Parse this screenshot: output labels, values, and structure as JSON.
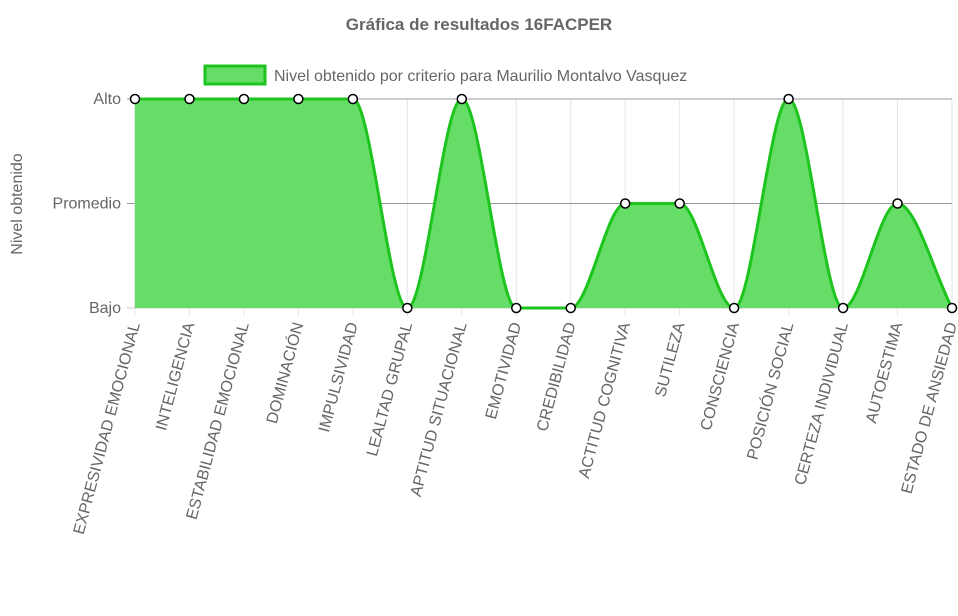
{
  "chart_data": {
    "type": "area",
    "title": "Gráfica de resultados 16FACPER",
    "ylabel": "Nivel obtenido",
    "xlabel": "",
    "y_levels": [
      "Bajo",
      "Promedio",
      "Alto"
    ],
    "ylim": [
      0,
      2
    ],
    "grid": true,
    "legend_position": "top",
    "categories": [
      "EXPRESIVIDAD EMOCIONAL",
      "INTELIGENCIA",
      "ESTABILIDAD EMOCIONAL",
      "DOMINACIÓN",
      "IMPULSIVIDAD",
      "LEALTAD GRUPAL",
      "APTITUD SITUACIONAL",
      "EMOTIVIDAD",
      "CREDIBILIDAD",
      "ACTITUD COGNITIVA",
      "SUTILEZA",
      "CONSCIENCIA",
      "POSICIÓN SOCIAL",
      "CERTEZA INDIVIDUAL",
      "AUTOESTIMA",
      "ESTADO DE ANSIEDAD"
    ],
    "series": [
      {
        "name": "Nivel obtenido por criterio para Maurilio Montalvo Vasquez",
        "values": [
          2,
          2,
          2,
          2,
          2,
          0,
          2,
          0,
          0,
          1,
          1,
          0,
          2,
          0,
          1,
          0
        ],
        "color": "#1ec41e",
        "fill": "#66dd66"
      }
    ]
  }
}
